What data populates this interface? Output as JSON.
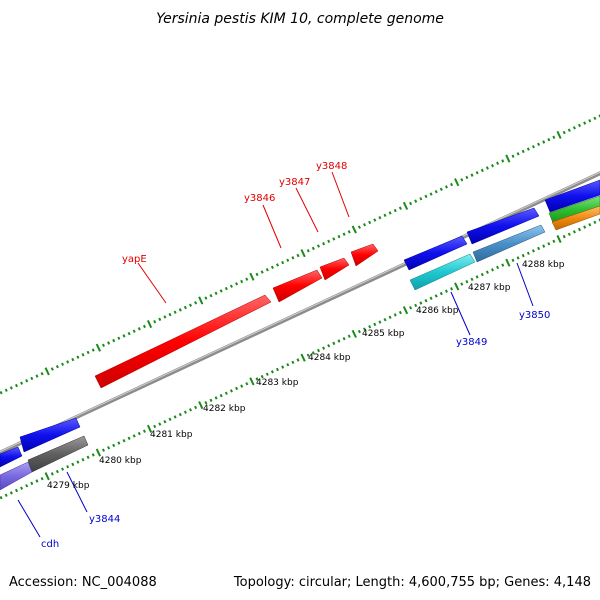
{
  "map": {
    "title": "Yersinia pestis KIM 10, complete genome",
    "accession_text": "Accession: NC_004088",
    "summary_text": "Topology: circular; Length: 4,600,755 bp; Genes: 4,148",
    "colors": {
      "backbone": "#8c8c8c",
      "tick_dot": "#1a8a1a",
      "label_red": "#e00000",
      "label_blue": "#0000cc"
    }
  },
  "ticks": [
    {
      "label": "4279 kbp"
    },
    {
      "label": "4280 kbp"
    },
    {
      "label": "4281 kbp"
    },
    {
      "label": "4282 kbp"
    },
    {
      "label": "4283 kbp"
    },
    {
      "label": "4284 kbp"
    },
    {
      "label": "4285 kbp"
    },
    {
      "label": "4286 kbp"
    },
    {
      "label": "4287 kbp"
    },
    {
      "label": "4288 kbp"
    }
  ],
  "genes": [
    {
      "name": "yapE",
      "color": "#ff0000"
    },
    {
      "name": "y3846",
      "color": "#ff0000"
    },
    {
      "name": "y3847",
      "color": "#ff0000"
    },
    {
      "name": "y3848",
      "color": "#ff0000"
    },
    {
      "name": "y3849",
      "color": "#20c8d0"
    },
    {
      "name": "y3850",
      "color": "#4a90c8"
    },
    {
      "name": "y3844",
      "color": "#606060"
    },
    {
      "name": "cdh",
      "color": "#7a6ae0"
    }
  ],
  "other_feature_colors": [
    "#1010ee",
    "#30c030",
    "#f08a10"
  ]
}
